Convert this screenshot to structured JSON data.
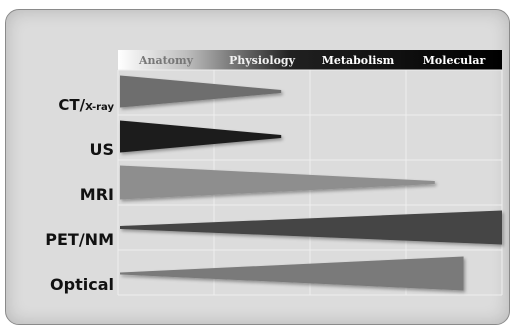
{
  "chart_data": {
    "type": "diagram",
    "columns": [
      "Anatomy",
      "Physiology",
      "Metabolism",
      "Molecular"
    ],
    "rows": [
      {
        "label": "CT/",
        "label_small": "X-ray",
        "start": 0,
        "end": 1.7,
        "thick_at": "start"
      },
      {
        "label": "US",
        "label_small": "",
        "start": 0,
        "end": 1.7,
        "thick_at": "start"
      },
      {
        "label": "MRI",
        "label_small": "",
        "start": 0,
        "end": 3.3,
        "thick_at": "start"
      },
      {
        "label": "PET/NM",
        "label_small": "",
        "start": 0,
        "end": 4,
        "thick_at": "end"
      },
      {
        "label": "Optical",
        "label_small": "",
        "start": 0,
        "end": 3.6,
        "thick_at": "end"
      }
    ]
  },
  "colors": {
    "frame_bg": "#dcdcdc",
    "grid_line": "#eeeeee",
    "row_1": "#6e6e6e",
    "row_2": "#1e1e1e",
    "row_3": "#8e8e8e",
    "row_4": "#444444",
    "row_5": "#7a7a7a",
    "header_start": "#ffffff",
    "header_end": "#000000"
  }
}
